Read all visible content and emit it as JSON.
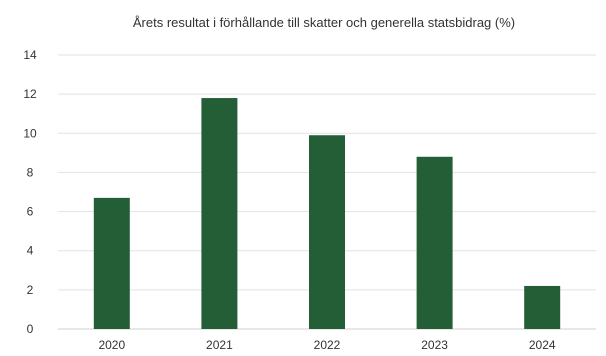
{
  "chart_data": {
    "type": "bar",
    "title": "Årets resultat i förhållande till skatter och generella statsbidrag (%)",
    "categories": [
      "2020",
      "2021",
      "2022",
      "2023",
      "2024"
    ],
    "values": [
      6.7,
      11.8,
      9.9,
      8.8,
      2.2
    ],
    "ylim": [
      0,
      14
    ],
    "yticks": [
      0,
      2,
      4,
      6,
      8,
      10,
      12,
      14
    ],
    "grid": true,
    "legend": "none",
    "bar_color": "#235e36"
  }
}
